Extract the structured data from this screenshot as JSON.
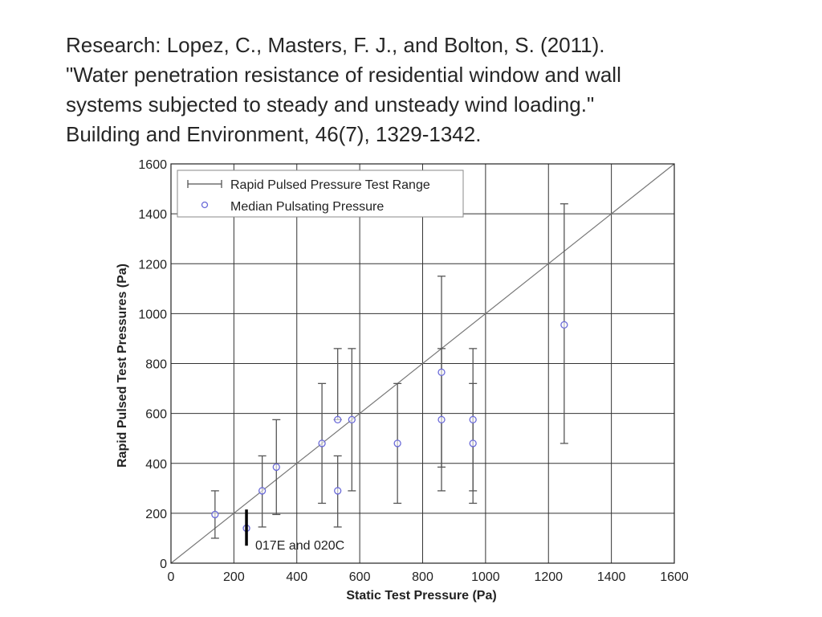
{
  "citation": {
    "lines": [
      "Research: Lopez, C., Masters, F. J., and Bolton, S. (2011).",
      "\"Water penetration resistance of residential window and wall",
      "systems subjected to steady and unsteady wind loading.\"",
      "Building and Environment, 46(7), 1329-1342."
    ]
  },
  "chart_data": {
    "type": "scatter",
    "title": "",
    "xlabel": "Static Test Pressure (Pa)",
    "ylabel": "Rapid Pulsed Test Pressures (Pa)",
    "xlim": [
      0,
      1600
    ],
    "ylim": [
      0,
      1600
    ],
    "xticks": [
      0,
      200,
      400,
      600,
      800,
      1000,
      1200,
      1400,
      1600
    ],
    "yticks": [
      0,
      200,
      400,
      600,
      800,
      1000,
      1200,
      1400,
      1600
    ],
    "grid": true,
    "legend_position": "top-left",
    "colors": {
      "range": "#555555",
      "median": "#6a6ad8",
      "highlight": "#000000",
      "reference": "#777777"
    },
    "reference_line": {
      "x": [
        0,
        1600
      ],
      "y": [
        0,
        1600
      ]
    },
    "series": [
      {
        "name": "Rapid Pulsed Pressure Test Range",
        "kind": "errorbar",
        "points": [
          {
            "x": 140,
            "low": 100,
            "high": 290
          },
          {
            "x": 290,
            "low": 145,
            "high": 430
          },
          {
            "x": 335,
            "low": 195,
            "high": 575
          },
          {
            "x": 480,
            "low": 240,
            "high": 720
          },
          {
            "x": 530,
            "low": 145,
            "high": 430
          },
          {
            "x": 530,
            "low": 575,
            "high": 860
          },
          {
            "x": 575,
            "low": 290,
            "high": 860
          },
          {
            "x": 720,
            "low": 240,
            "high": 720
          },
          {
            "x": 860,
            "low": 290,
            "high": 860
          },
          {
            "x": 860,
            "low": 385,
            "high": 1150
          },
          {
            "x": 960,
            "low": 240,
            "high": 720
          },
          {
            "x": 960,
            "low": 290,
            "high": 860
          },
          {
            "x": 1250,
            "low": 480,
            "high": 1440
          }
        ]
      },
      {
        "name": "Median Pulsating Pressure",
        "kind": "marker",
        "points": [
          {
            "x": 140,
            "y": 195
          },
          {
            "x": 240,
            "y": 140
          },
          {
            "x": 290,
            "y": 290
          },
          {
            "x": 335,
            "y": 385
          },
          {
            "x": 480,
            "y": 480
          },
          {
            "x": 530,
            "y": 575
          },
          {
            "x": 530,
            "y": 290
          },
          {
            "x": 575,
            "y": 575
          },
          {
            "x": 720,
            "y": 480
          },
          {
            "x": 860,
            "y": 765
          },
          {
            "x": 860,
            "y": 575
          },
          {
            "x": 960,
            "y": 575
          },
          {
            "x": 960,
            "y": 480
          },
          {
            "x": 1250,
            "y": 955
          }
        ]
      }
    ],
    "highlight": {
      "x": 240,
      "low": 70,
      "high": 215
    },
    "annotations": [
      {
        "text": "017E and 020C",
        "x": 270,
        "y": 75
      }
    ]
  }
}
